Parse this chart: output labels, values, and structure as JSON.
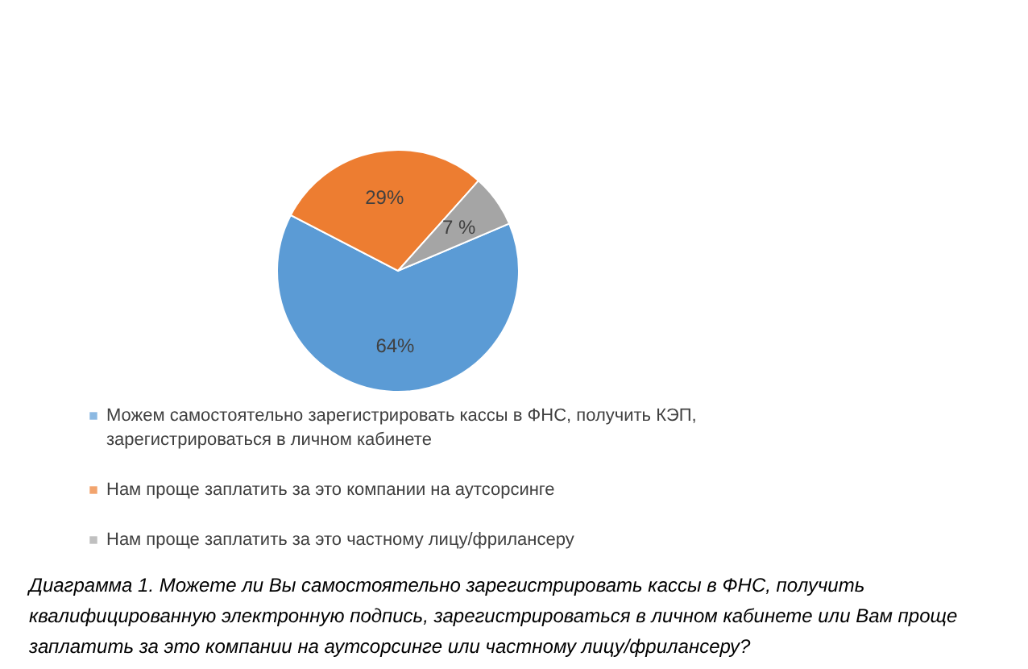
{
  "chart_data": {
    "type": "pie",
    "title": "Диаграмма 1. Можете ли Вы самостоятельно зарегистрировать кассы в ФНС, получить квалифицированную электронную подпись, зарегистрироваться в личном кабинете или Вам проще заплатить за это компании на аутсорсинге или частному лицу/фрилансеру?",
    "categories": [
      "Можем самостоятельно зарегистрировать кассы в ФНС, получить КЭП, зарегистрироваться в личном кабинете",
      "Нам проще заплатить за это компании на аутсорсинге",
      "Нам проще заплатить за это частному лицу/фрилансеру"
    ],
    "values": [
      64,
      29,
      7
    ],
    "colors": [
      "#5b9bd5",
      "#ed7d31",
      "#a5a5a5"
    ],
    "value_labels": [
      "64%",
      "29%",
      "7 %"
    ],
    "legend": "bottom"
  }
}
